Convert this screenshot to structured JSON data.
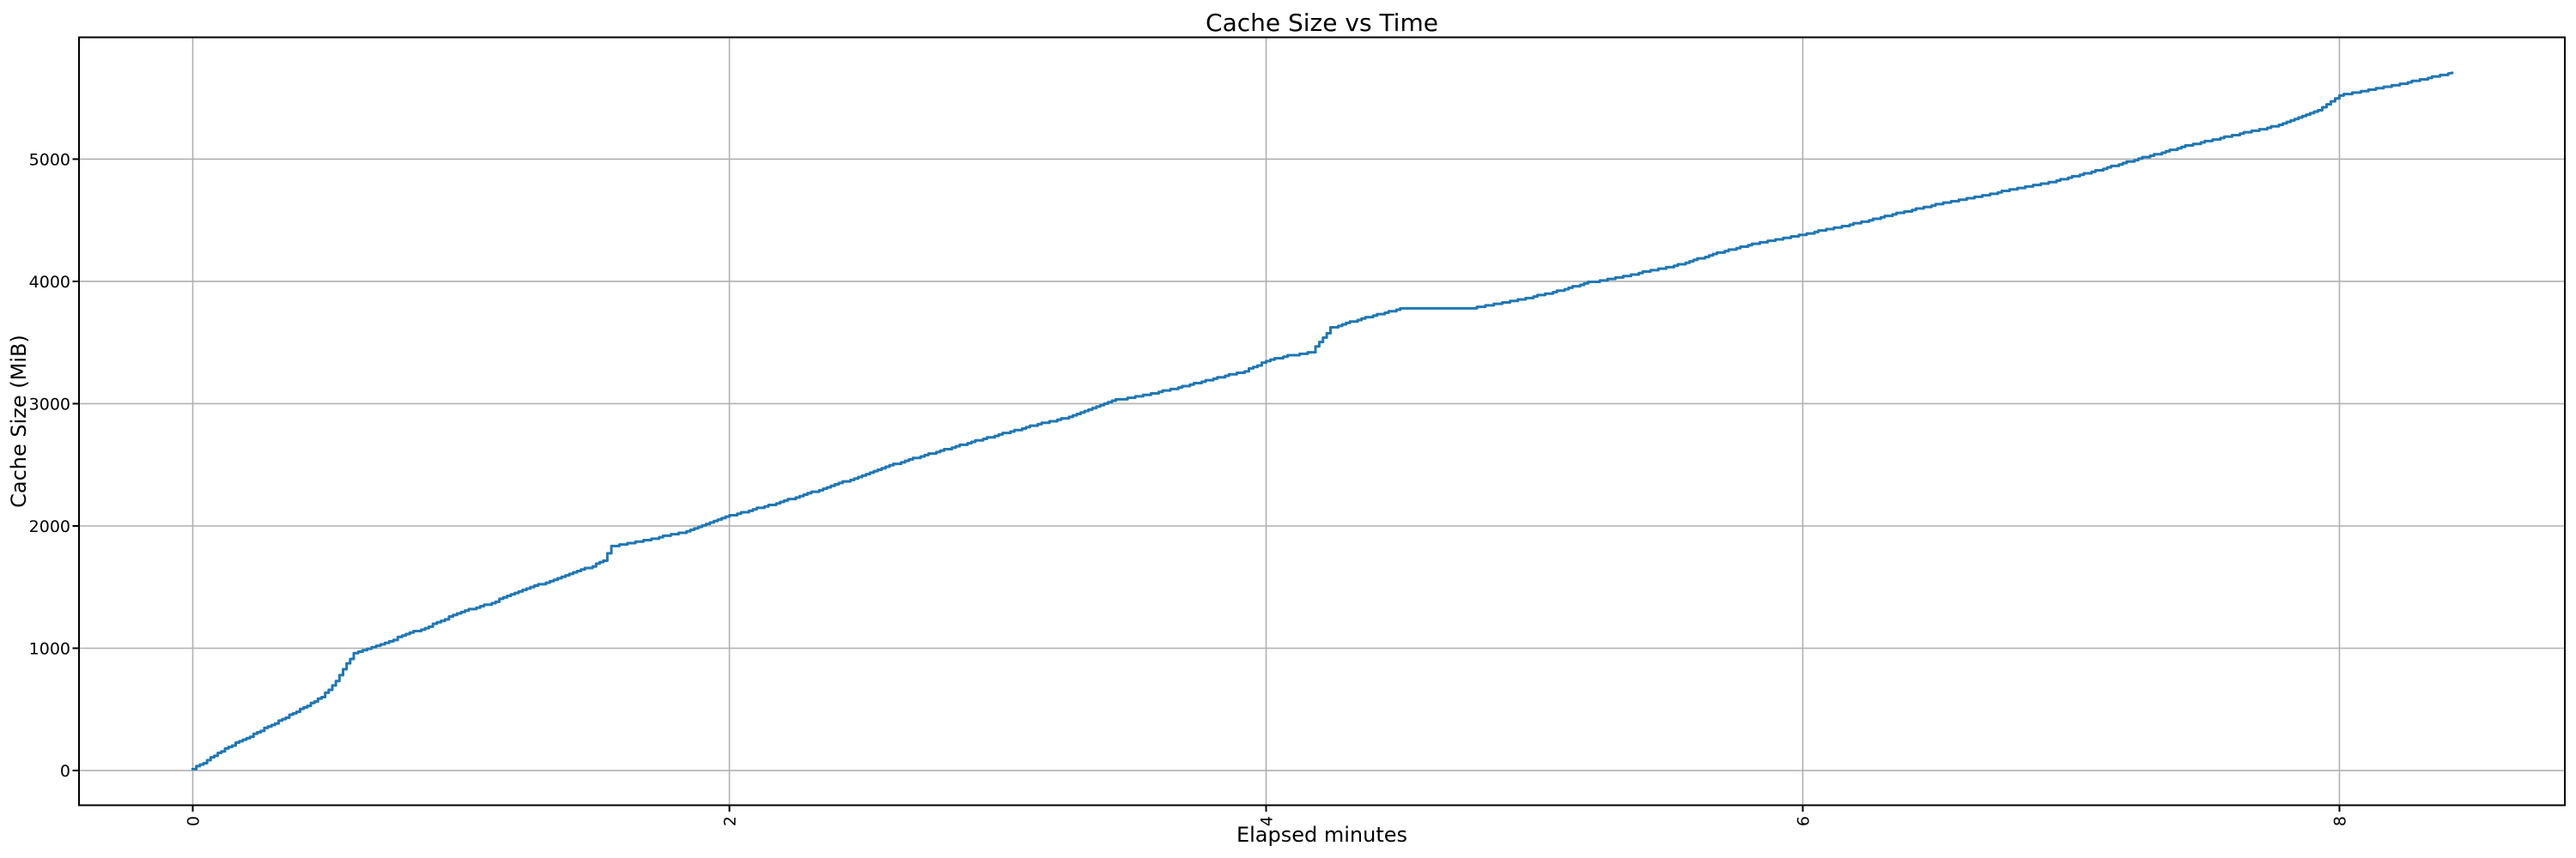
{
  "colors": {
    "background": "#ffffff",
    "line": "#1f77b4",
    "grid": "#b0b0b0",
    "spine": "#000000",
    "text": "#000000"
  },
  "chart_data": {
    "type": "line",
    "title": "Cache Size vs Time",
    "xlabel": "Elapsed minutes",
    "ylabel": "Cache Size (MiB)",
    "grid": true,
    "legend": "none",
    "xlim": [
      -0.424,
      8.84
    ],
    "ylim": [
      -284,
      5996
    ],
    "xticks": [
      0,
      2,
      4,
      6,
      8
    ],
    "xtick_labels": [
      "0",
      "2",
      "4",
      "6",
      "8"
    ],
    "xtick_rotation_deg": 90,
    "yticks": [
      0,
      1000,
      2000,
      3000,
      4000,
      5000
    ],
    "ytick_labels": [
      "0",
      "1000",
      "2000",
      "3000",
      "4000",
      "5000"
    ],
    "line_color": "#1f77b4",
    "series": [
      {
        "name": "Cache Size",
        "style": "stepped",
        "points": [
          [
            0.0,
            15
          ],
          [
            0.04,
            60
          ],
          [
            0.08,
            125
          ],
          [
            0.12,
            180
          ],
          [
            0.16,
            222
          ],
          [
            0.2,
            265
          ],
          [
            0.24,
            310
          ],
          [
            0.28,
            360
          ],
          [
            0.32,
            402
          ],
          [
            0.36,
            450
          ],
          [
            0.4,
            500
          ],
          [
            0.44,
            550
          ],
          [
            0.48,
            605
          ],
          [
            0.52,
            690
          ],
          [
            0.56,
            830
          ],
          [
            0.6,
            955
          ],
          [
            0.65,
            995
          ],
          [
            0.7,
            1030
          ],
          [
            0.78,
            1100
          ],
          [
            0.88,
            1180
          ],
          [
            1.0,
            1300
          ],
          [
            1.1,
            1360
          ],
          [
            1.2,
            1450
          ],
          [
            1.36,
            1575
          ],
          [
            1.49,
            1672
          ],
          [
            1.53,
            1720
          ],
          [
            1.56,
            1830
          ],
          [
            1.68,
            1882
          ],
          [
            1.84,
            1955
          ],
          [
            2.0,
            2085
          ],
          [
            2.16,
            2175
          ],
          [
            2.32,
            2285
          ],
          [
            2.48,
            2400
          ],
          [
            2.64,
            2525
          ],
          [
            2.8,
            2625
          ],
          [
            2.96,
            2720
          ],
          [
            3.12,
            2815
          ],
          [
            3.28,
            2900
          ],
          [
            3.44,
            3030
          ],
          [
            3.6,
            3095
          ],
          [
            3.76,
            3180
          ],
          [
            3.92,
            3265
          ],
          [
            4.0,
            3350
          ],
          [
            4.08,
            3390
          ],
          [
            4.17,
            3425
          ],
          [
            4.24,
            3620
          ],
          [
            4.37,
            3705
          ],
          [
            4.5,
            3775
          ],
          [
            4.62,
            3782
          ],
          [
            4.77,
            3785
          ],
          [
            4.88,
            3825
          ],
          [
            5.04,
            3895
          ],
          [
            5.2,
            3990
          ],
          [
            5.36,
            4055
          ],
          [
            5.52,
            4125
          ],
          [
            5.68,
            4230
          ],
          [
            5.84,
            4320
          ],
          [
            6.0,
            4385
          ],
          [
            6.16,
            4455
          ],
          [
            6.32,
            4540
          ],
          [
            6.48,
            4620
          ],
          [
            6.64,
            4690
          ],
          [
            6.8,
            4760
          ],
          [
            6.96,
            4830
          ],
          [
            7.12,
            4920
          ],
          [
            7.28,
            5020
          ],
          [
            7.44,
            5115
          ],
          [
            7.6,
            5195
          ],
          [
            7.76,
            5270
          ],
          [
            7.92,
            5400
          ],
          [
            8.0,
            5520
          ],
          [
            8.08,
            5555
          ],
          [
            8.15,
            5580
          ],
          [
            8.27,
            5635
          ],
          [
            8.42,
            5705
          ]
        ]
      }
    ]
  }
}
